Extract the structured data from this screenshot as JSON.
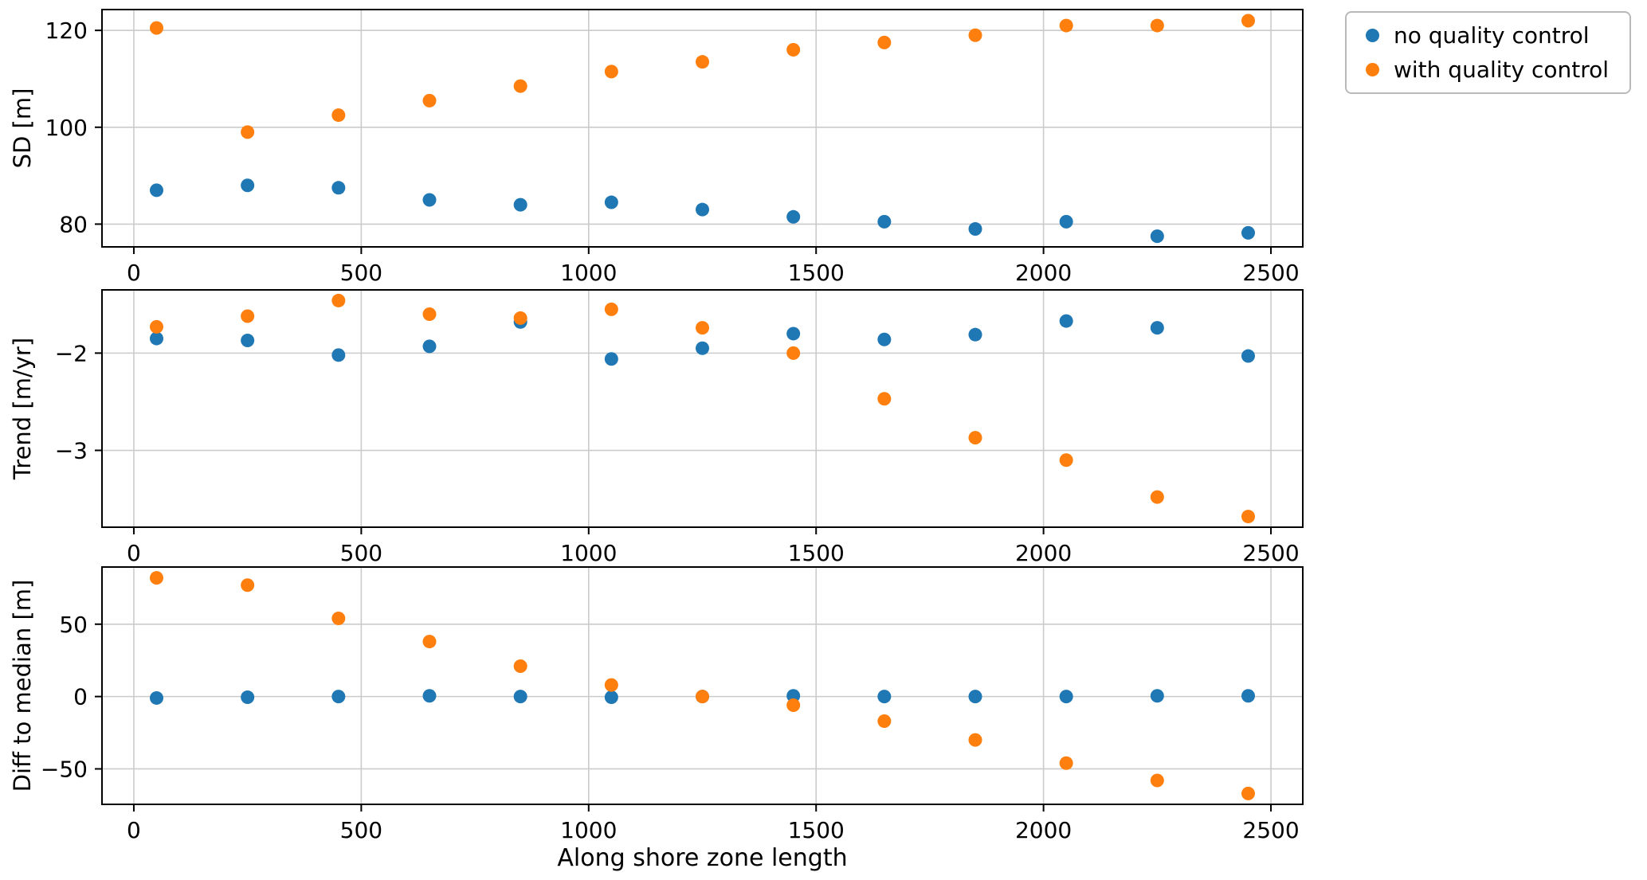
{
  "figure": {
    "xlabel": "Along shore zone length",
    "background": "#ffffff"
  },
  "legend": {
    "items": [
      {
        "label": "no quality control",
        "color": "#1f77b4"
      },
      {
        "label": "with quality control",
        "color": "#ff7f0e"
      }
    ]
  },
  "chart_data": [
    {
      "type": "scatter",
      "ylabel": "SD [m]",
      "x": [
        50,
        250,
        450,
        650,
        850,
        1050,
        1250,
        1450,
        1650,
        1850,
        2050,
        2250,
        2450
      ],
      "series": [
        {
          "name": "no quality control",
          "color": "#1f77b4",
          "values": [
            87,
            88,
            87.5,
            85,
            84,
            84.5,
            83,
            81.5,
            80.5,
            79,
            80.5,
            77.5,
            78.2
          ]
        },
        {
          "name": "with quality control",
          "color": "#ff7f0e",
          "values": [
            120.5,
            99,
            102.5,
            105.5,
            108.5,
            111.5,
            113.5,
            116,
            117.5,
            119,
            121,
            121,
            122
          ]
        }
      ],
      "xticks": [
        0,
        500,
        1000,
        1500,
        2000,
        2500
      ],
      "yticks": [
        80,
        100,
        120
      ],
      "xlim": [
        -70,
        2570
      ],
      "ylim": [
        75.3,
        124.3
      ],
      "grid": true
    },
    {
      "type": "scatter",
      "ylabel": "Trend [m/yr]",
      "x": [
        50,
        250,
        450,
        650,
        850,
        1050,
        1250,
        1450,
        1650,
        1850,
        2050,
        2250,
        2450
      ],
      "series": [
        {
          "name": "no quality control",
          "color": "#1f77b4",
          "values": [
            -1.85,
            -1.87,
            -2.02,
            -1.93,
            -1.68,
            -2.06,
            -1.95,
            -1.8,
            -1.86,
            -1.81,
            -1.67,
            -1.74,
            -2.03
          ]
        },
        {
          "name": "with quality control",
          "color": "#ff7f0e",
          "values": [
            -1.73,
            -1.62,
            -1.46,
            -1.6,
            -1.64,
            -1.55,
            -1.74,
            -2.0,
            -2.47,
            -2.87,
            -3.1,
            -3.48,
            -3.68
          ]
        }
      ],
      "xticks": [
        0,
        500,
        1000,
        1500,
        2000,
        2500
      ],
      "yticks": [
        -3,
        -2
      ],
      "xlim": [
        -70,
        2570
      ],
      "ylim": [
        -3.79,
        -1.35
      ],
      "grid": true
    },
    {
      "type": "scatter",
      "ylabel": "Diff to median [m]",
      "x": [
        50,
        250,
        450,
        650,
        850,
        1050,
        1250,
        1450,
        1650,
        1850,
        2050,
        2250,
        2450
      ],
      "series": [
        {
          "name": "no quality control",
          "color": "#1f77b4",
          "values": [
            -1,
            -0.5,
            0,
            0.5,
            0,
            -0.5,
            0,
            0.5,
            0,
            0,
            0,
            0.5,
            0.5
          ]
        },
        {
          "name": "with quality control",
          "color": "#ff7f0e",
          "values": [
            82,
            77,
            54,
            38,
            21,
            8,
            0,
            -6,
            -17,
            -30,
            -46,
            -58,
            -67
          ]
        }
      ],
      "xticks": [
        0,
        500,
        1000,
        1500,
        2000,
        2500
      ],
      "yticks": [
        -50,
        0,
        50
      ],
      "xlim": [
        -70,
        2570
      ],
      "ylim": [
        -74.5,
        89.5
      ],
      "grid": true
    }
  ]
}
